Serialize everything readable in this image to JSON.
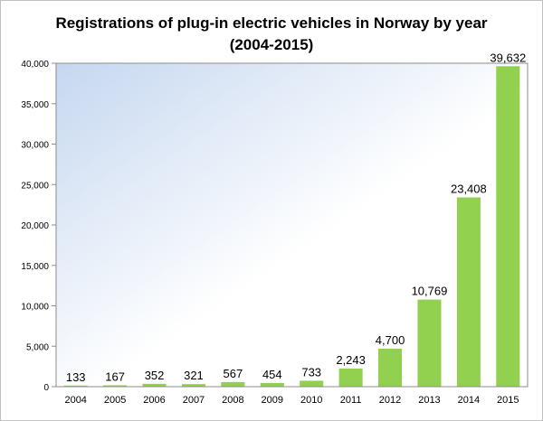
{
  "chart_title": {
    "line1": "Registrations of plug-in electric vehicles in Norway by year",
    "line2": "(2004-2015)"
  },
  "chart_data": {
    "type": "bar",
    "title": "Registrations of plug-in electric vehicles in Norway by year (2004-2015)",
    "xlabel": "",
    "ylabel": "",
    "categories": [
      "2004",
      "2005",
      "2006",
      "2007",
      "2008",
      "2009",
      "2010",
      "2011",
      "2012",
      "2013",
      "2014",
      "2015"
    ],
    "values": [
      133,
      167,
      352,
      321,
      567,
      454,
      733,
      2243,
      4700,
      10769,
      23408,
      39632
    ],
    "value_labels": [
      "133",
      "167",
      "352",
      "321",
      "567",
      "454",
      "733",
      "2,243",
      "4,700",
      "10,769",
      "23,408",
      "39,632"
    ],
    "ylim": [
      0,
      40000
    ],
    "yticks": [
      0,
      5000,
      10000,
      15000,
      20000,
      25000,
      30000,
      35000,
      40000
    ],
    "ytick_labels": [
      "0",
      "5,000",
      "10,000",
      "15,000",
      "20,000",
      "25,000",
      "30,000",
      "35,000",
      "40,000"
    ],
    "grid": false,
    "legend": "none",
    "bar_color": "#92d050",
    "plot_gradient": [
      "#c5d7f0",
      "#ffffff"
    ]
  }
}
